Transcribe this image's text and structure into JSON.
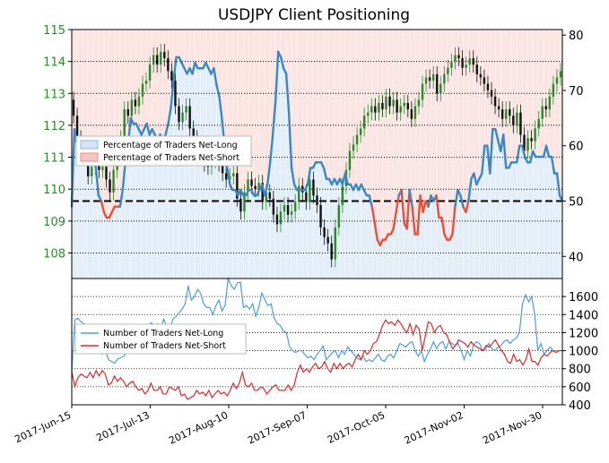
{
  "chart_data": {
    "title": "USDJPY Client Positioning",
    "type": "line",
    "x_tick_labels": [
      "2017-Jun-15",
      "2017-Jul-13",
      "2017-Aug-10",
      "2017-Sep-07",
      "2017-Oct-05",
      "2017-Nov-02",
      "2017-Nov-30"
    ],
    "x_range": [
      "2017-06-15",
      "2017-12-13"
    ],
    "top_panel": {
      "price_axis": {
        "side": "left",
        "ylim": [
          107.2,
          115
        ],
        "ticks": [
          108,
          109,
          110,
          111,
          112,
          113,
          114,
          115
        ],
        "color": "#2a8a2a"
      },
      "percent_axis": {
        "side": "right",
        "ylim": [
          36,
          81
        ],
        "ticks": [
          40,
          50,
          60,
          70,
          80
        ]
      },
      "reference_line": 50,
      "legend": {
        "position": "center-left",
        "entries": [
          "Percentage of Traders Net-Long",
          "Percentage of Traders Net-Short"
        ]
      },
      "colors": {
        "long": "#3a87c4",
        "short": "#e8503a",
        "long_fill": "#e3eef8",
        "short_fill": "#fbe5e3",
        "candle_up": "#2a8a2a",
        "candle_down": "#111111"
      },
      "net_long_pct": [
        49,
        63,
        60,
        61,
        61,
        61,
        60,
        60,
        60,
        56,
        51,
        50,
        48,
        47,
        47,
        48,
        49,
        49,
        49,
        52,
        57,
        60,
        65,
        64,
        64,
        63,
        62,
        63,
        64,
        62,
        63,
        62,
        61,
        62,
        61,
        62,
        64,
        67,
        72,
        76,
        76,
        75,
        74,
        73,
        74,
        73,
        75,
        74,
        74,
        74,
        75,
        74,
        73,
        74,
        71,
        69,
        65,
        60,
        56,
        53,
        52,
        52,
        51,
        52,
        51,
        51,
        52,
        52,
        51,
        51,
        52,
        53,
        51,
        53,
        57,
        62,
        68,
        77,
        76,
        74,
        73,
        66,
        56,
        53,
        52,
        52,
        52,
        52,
        53,
        56,
        56,
        57,
        57,
        57,
        56,
        54,
        54,
        53,
        54,
        53,
        54,
        53,
        55,
        53,
        53,
        52,
        53,
        52,
        53,
        52,
        51,
        51,
        49,
        46,
        43,
        42,
        43,
        43,
        44,
        44,
        45,
        48,
        51,
        52,
        46,
        45,
        52,
        49,
        44,
        44,
        51,
        48,
        50,
        49,
        51,
        50,
        51,
        47,
        47,
        44,
        43,
        43,
        44,
        49,
        52,
        51,
        49,
        48,
        50,
        54,
        55,
        53,
        54,
        55,
        60,
        60,
        55,
        63,
        63,
        61,
        59,
        62,
        56,
        56,
        57,
        57,
        57,
        60,
        60,
        58,
        57,
        57,
        59,
        58,
        58,
        58,
        58,
        60,
        58,
        58,
        55,
        55,
        51,
        50
      ],
      "price_ohlc": [
        [
          112.8,
          112.3
        ],
        [
          112.3,
          111.6
        ],
        [
          111.6,
          111.2
        ],
        [
          111.2,
          111.0
        ],
        [
          111.0,
          110.4
        ],
        [
          110.4,
          110.7
        ],
        [
          110.7,
          110.9
        ],
        [
          110.9,
          110.6
        ],
        [
          110.6,
          110.7
        ],
        [
          110.7,
          110.3
        ],
        [
          110.3,
          109.9
        ],
        [
          109.9,
          110.6
        ],
        [
          110.6,
          111.1
        ],
        [
          111.1,
          111.6
        ],
        [
          111.6,
          112.5
        ],
        [
          112.5,
          112.3
        ],
        [
          112.3,
          112.8
        ],
        [
          112.8,
          112.6
        ],
        [
          112.6,
          112.9
        ],
        [
          112.9,
          113.3
        ],
        [
          113.3,
          113.4
        ],
        [
          113.4,
          113.9
        ],
        [
          113.9,
          114.2
        ],
        [
          114.2,
          113.9
        ],
        [
          113.9,
          114.3
        ],
        [
          114.3,
          114.1
        ],
        [
          114.1,
          113.7
        ],
        [
          113.7,
          113.4
        ],
        [
          113.4,
          112.6
        ],
        [
          112.6,
          112.1
        ],
        [
          112.1,
          112.4
        ],
        [
          112.4,
          112.6
        ],
        [
          112.6,
          111.9
        ],
        [
          111.9,
          111.6
        ],
        [
          111.6,
          111.2
        ],
        [
          111.2,
          111.1
        ],
        [
          111.1,
          110.8
        ],
        [
          110.8,
          110.7
        ],
        [
          110.7,
          110.9
        ],
        [
          110.9,
          111.0
        ],
        [
          111.0,
          110.8
        ],
        [
          110.8,
          110.5
        ],
        [
          110.5,
          110.3
        ],
        [
          110.3,
          110.4
        ],
        [
          110.4,
          110.5
        ],
        [
          110.5,
          109.7
        ],
        [
          109.7,
          109.3
        ],
        [
          109.3,
          109.9
        ],
        [
          109.9,
          110.3
        ],
        [
          110.3,
          110.1
        ],
        [
          110.1,
          110.0
        ],
        [
          110.0,
          110.2
        ],
        [
          110.2,
          109.6
        ],
        [
          109.6,
          109.9
        ],
        [
          109.9,
          109.7
        ],
        [
          109.7,
          109.2
        ],
        [
          109.2,
          108.9
        ],
        [
          108.9,
          109.3
        ],
        [
          109.3,
          109.5
        ],
        [
          109.5,
          109.2
        ],
        [
          109.2,
          109.3
        ],
        [
          109.3,
          109.6
        ],
        [
          109.6,
          110.1
        ],
        [
          110.1,
          109.9
        ],
        [
          109.9,
          109.6
        ],
        [
          109.6,
          110.3
        ],
        [
          110.3,
          109.8
        ],
        [
          109.8,
          109.5
        ],
        [
          109.5,
          108.8
        ],
        [
          108.8,
          108.5
        ],
        [
          108.5,
          108.3
        ],
        [
          108.3,
          107.8
        ],
        [
          107.8,
          108.8
        ],
        [
          108.8,
          109.5
        ],
        [
          109.5,
          110.1
        ],
        [
          110.1,
          110.6
        ],
        [
          110.6,
          111.2
        ],
        [
          111.2,
          111.4
        ],
        [
          111.4,
          111.7
        ],
        [
          111.7,
          111.9
        ],
        [
          111.9,
          112.3
        ],
        [
          112.3,
          112.4
        ],
        [
          112.4,
          112.6
        ],
        [
          112.6,
          112.4
        ],
        [
          112.4,
          112.7
        ],
        [
          112.7,
          112.5
        ],
        [
          112.5,
          112.9
        ],
        [
          112.9,
          112.6
        ],
        [
          112.6,
          112.8
        ],
        [
          112.8,
          112.4
        ],
        [
          112.4,
          112.6
        ],
        [
          112.6,
          112.7
        ],
        [
          112.7,
          112.5
        ],
        [
          112.5,
          112.2
        ],
        [
          112.2,
          112.6
        ],
        [
          112.6,
          112.8
        ],
        [
          112.8,
          113.3
        ],
        [
          113.3,
          113.5
        ],
        [
          113.5,
          113.4
        ],
        [
          113.4,
          113.6
        ],
        [
          113.6,
          113.0
        ],
        [
          113.0,
          113.3
        ],
        [
          113.3,
          113.6
        ],
        [
          113.6,
          113.8
        ],
        [
          113.8,
          114.0
        ],
        [
          114.0,
          114.2
        ],
        [
          114.2,
          114.1
        ],
        [
          114.1,
          113.8
        ],
        [
          113.8,
          113.9
        ],
        [
          113.9,
          114.1
        ],
        [
          114.1,
          113.9
        ],
        [
          113.9,
          113.6
        ],
        [
          113.6,
          113.5
        ],
        [
          113.5,
          113.3
        ],
        [
          113.3,
          113.1
        ],
        [
          113.1,
          112.9
        ],
        [
          112.9,
          112.6
        ],
        [
          112.6,
          112.5
        ],
        [
          112.5,
          112.2
        ],
        [
          112.2,
          112.5
        ],
        [
          112.5,
          112.3
        ],
        [
          112.3,
          112.0
        ],
        [
          112.0,
          112.4
        ],
        [
          112.4,
          111.7
        ],
        [
          111.7,
          111.2
        ],
        [
          111.2,
          111.6
        ],
        [
          111.6,
          111.5
        ],
        [
          111.5,
          111.9
        ],
        [
          111.9,
          112.2
        ],
        [
          112.2,
          112.6
        ],
        [
          112.6,
          112.5
        ],
        [
          112.5,
          112.9
        ],
        [
          112.9,
          113.3
        ],
        [
          113.3,
          113.5
        ],
        [
          113.5,
          113.7
        ]
      ],
      "note_price": "price_ohlc pairs are [open, close]"
    },
    "bottom_panel": {
      "count_axis": {
        "side": "right",
        "ylim": [
          400,
          1800
        ],
        "ticks": [
          400,
          600,
          800,
          1000,
          1200,
          1400,
          1600
        ]
      },
      "legend": {
        "position": "center-left",
        "entries": [
          "Number of Traders Net-Long",
          "Number of Traders Net-Short"
        ]
      },
      "colors": {
        "long": "#4a9de0",
        "short": "#e02828"
      },
      "net_long_count": [
        760,
        1340,
        1360,
        1320,
        1300,
        1220,
        1200,
        1180,
        1100,
        1050,
        960,
        1000,
        900,
        880,
        860,
        910,
        920,
        940,
        1000,
        1040,
        1120,
        1140,
        1100,
        1200,
        1220,
        1280,
        1310,
        1270,
        1300,
        1250,
        1350,
        1260,
        1240,
        1350,
        1380,
        1420,
        1460,
        1520,
        1720,
        1560,
        1600,
        1680,
        1640,
        1520,
        1480,
        1480,
        1400,
        1500,
        1560,
        1440,
        1500,
        1800,
        1720,
        1680,
        1750,
        1760,
        1480,
        1500,
        1460,
        1520,
        1380,
        1480,
        1640,
        1560,
        1500,
        1520,
        1360,
        1300,
        1280,
        1220,
        1200,
        1050,
        1000,
        980,
        1000,
        1000,
        960,
        920,
        940,
        900,
        960,
        1000,
        1050,
        900,
        940,
        980,
        1000,
        920,
        1000,
        960,
        1040,
        1000,
        960,
        920,
        900,
        940,
        880,
        900,
        880,
        920,
        960,
        900,
        880,
        940,
        960,
        920,
        1000,
        1080,
        1060,
        1040,
        1080,
        1100,
        1000,
        940,
        1000,
        880,
        960,
        1020,
        1100,
        1020,
        1080,
        1100,
        1020,
        1100,
        1080,
        1060,
        1080,
        1000,
        900,
        1000,
        940,
        1060,
        1100,
        1080,
        1000,
        1020,
        1080,
        1020,
        1000,
        1040,
        1060,
        1100,
        1120,
        1080,
        1120,
        1140,
        1200,
        1520,
        1620,
        1540,
        1600,
        1400,
        1000,
        1080,
        960,
        1000,
        1040,
        1000,
        1000,
        1000,
        1000
      ],
      "net_short_count": [
        770,
        600,
        700,
        740,
        720,
        700,
        760,
        700,
        780,
        720,
        780,
        740,
        620,
        640,
        720,
        660,
        700,
        660,
        600,
        640,
        660,
        600,
        560,
        580,
        520,
        560,
        640,
        560,
        560,
        600,
        520,
        520,
        600,
        580,
        560,
        600,
        500,
        520,
        460,
        480,
        500,
        560,
        520,
        540,
        500,
        560,
        480,
        520,
        560,
        520,
        540,
        500,
        560,
        640,
        580,
        640,
        760,
        620,
        600,
        640,
        560,
        560,
        600,
        580,
        520,
        560,
        600,
        620,
        560,
        560,
        560,
        620,
        560,
        620,
        760,
        840,
        760,
        800,
        760,
        820,
        860,
        800,
        820,
        880,
        800,
        760,
        860,
        800,
        860,
        800,
        840,
        860,
        820,
        900,
        960,
        900,
        1000,
        960,
        1000,
        1080,
        1100,
        1180,
        1280,
        1340,
        1300,
        1320,
        1280,
        1340,
        1300,
        1240,
        1200,
        1300,
        1180,
        1280,
        1240,
        1000,
        1160,
        1320,
        1300,
        1200,
        1260,
        1280,
        1200,
        1180,
        1100,
        1020,
        1060,
        1120,
        1100,
        1080,
        1040,
        1100,
        1060,
        1040,
        1020,
        1000,
        1060,
        1040,
        1080,
        1120,
        1060,
        1000,
        960,
        880,
        860,
        960,
        880,
        900,
        840,
        900,
        1020,
        880,
        880,
        840,
        920,
        960,
        940,
        980,
        1000,
        980,
        1000,
        1000
      ]
    }
  }
}
